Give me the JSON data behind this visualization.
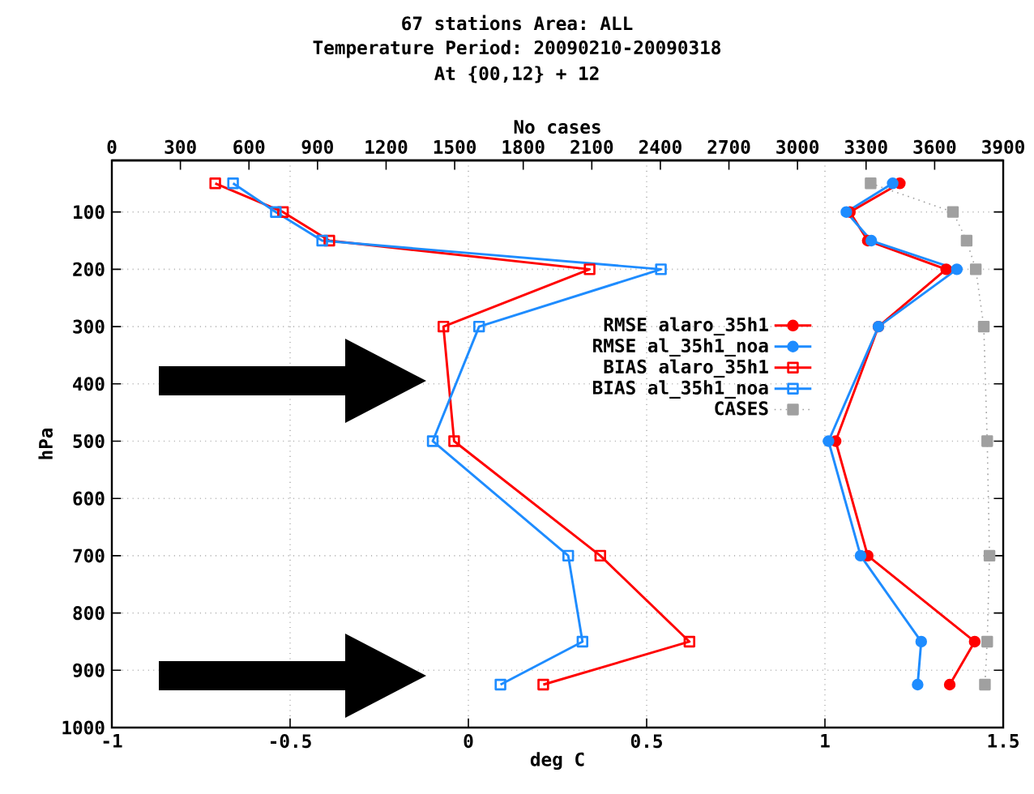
{
  "chart_data": {
    "type": "line",
    "title": "67 stations Area: ALL",
    "subtitle": "Temperature  Period: 20090210-20090318",
    "annotations": [
      "At {00,12} + 12"
    ],
    "xlabel": "deg C",
    "ylabel": "hPa",
    "x2label": "No cases",
    "xlim": [
      -1,
      1.5
    ],
    "xticks": [
      -1,
      -0.5,
      0,
      0.5,
      1,
      1.5
    ],
    "x2lim": [
      0,
      3900
    ],
    "x2ticks": [
      0,
      300,
      600,
      900,
      1200,
      1500,
      1800,
      2100,
      2400,
      2700,
      3000,
      3300,
      3600,
      3900
    ],
    "ylim": [
      1000,
      10
    ],
    "yticks": [
      100,
      200,
      300,
      400,
      500,
      600,
      700,
      800,
      900,
      1000
    ],
    "grid": true,
    "legend": "center",
    "series": [
      {
        "name": "RMSE alaro_35h1",
        "color": "#ff0000",
        "marker": "circle",
        "line_style": "solid",
        "x": [
          1.21,
          1.07,
          1.12,
          1.34,
          1.15,
          1.03,
          1.12,
          1.42,
          1.35
        ],
        "values": [
          50,
          100,
          150,
          200,
          300,
          500,
          700,
          850,
          925
        ]
      },
      {
        "name": "RMSE al_35h1_noa",
        "color": "#1e8cff",
        "marker": "circle",
        "line_style": "solid",
        "x": [
          1.19,
          1.06,
          1.13,
          1.37,
          1.15,
          1.01,
          1.1,
          1.27,
          1.26
        ],
        "values": [
          50,
          100,
          150,
          200,
          300,
          500,
          700,
          850,
          925
        ]
      },
      {
        "name": "BIAS alaro_35h1",
        "color": "#ff0000",
        "marker": "square",
        "line_style": "solid",
        "x": [
          -0.71,
          -0.52,
          -0.39,
          0.34,
          -0.07,
          -0.04,
          0.37,
          0.62,
          0.21
        ],
        "values": [
          50,
          100,
          150,
          200,
          300,
          500,
          700,
          850,
          925
        ]
      },
      {
        "name": "BIAS al_35h1_noa",
        "color": "#1e8cff",
        "marker": "square",
        "line_style": "solid",
        "x": [
          -0.66,
          -0.54,
          -0.41,
          0.54,
          0.03,
          -0.1,
          0.28,
          0.32,
          0.09
        ],
        "values": [
          50,
          100,
          150,
          200,
          300,
          500,
          700,
          850,
          925
        ]
      },
      {
        "name": "CASES",
        "color": "#a0a0a0",
        "marker": "square",
        "line_style": "dotted",
        "axis": "x2",
        "x": [
          3320,
          3680,
          3740,
          3780,
          3815,
          3830,
          3840,
          3830,
          3820
        ],
        "values": [
          50,
          100,
          150,
          200,
          300,
          500,
          700,
          850,
          925
        ]
      }
    ]
  }
}
